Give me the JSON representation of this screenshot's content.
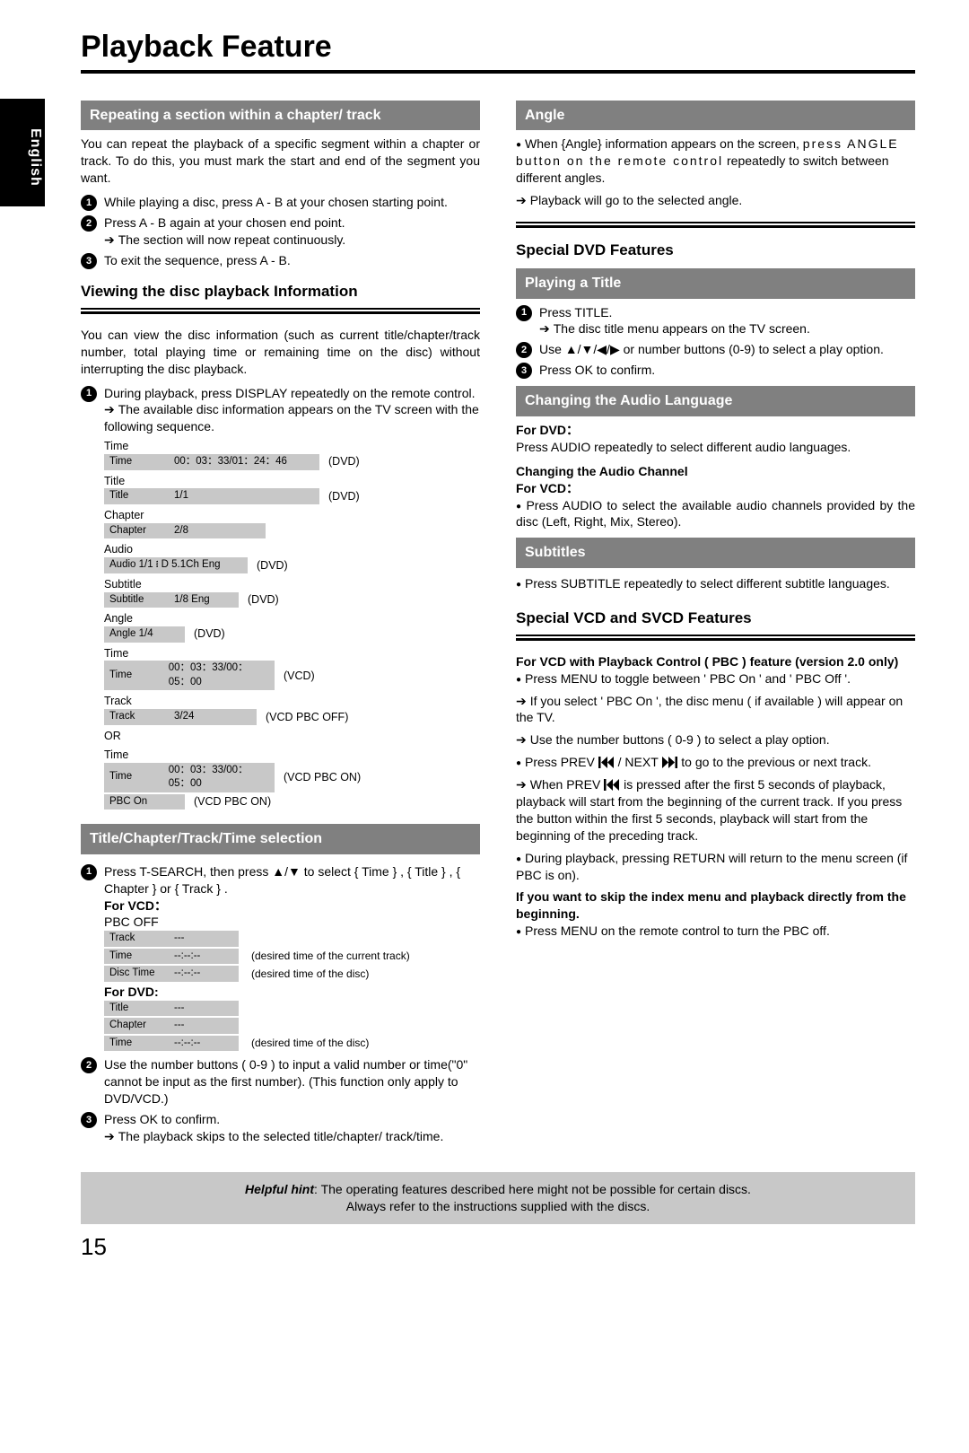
{
  "page": {
    "title": "Playback Feature",
    "language_tab": "English",
    "number": "15"
  },
  "colors": {
    "bar_bg": "#808080",
    "bar_fg": "#ffffff",
    "grey_box": "#c8c8c8",
    "rule": "#000000"
  },
  "left": {
    "repeat": {
      "title": "Repeating a section within a chapter/ track",
      "intro": "You can repeat the playback of a specific segment within a chapter or track. To do this, you must mark the start and end of the segment you want.",
      "steps": [
        "While playing a disc, press A - B at your chosen starting point.",
        "Press A - B again at your chosen end point.",
        "To exit the sequence, press A - B."
      ],
      "step2_arrow": "The section will now repeat continuously."
    },
    "view_info": {
      "title": "Viewing the disc playback Information",
      "intro": "You can view the disc information (such as current title/chapter/track number, total playing time or remaining time on the disc) without interrupting the disc playback.",
      "step1": "During playback, press DISPLAY repeatedly on the remote control.",
      "arrow": "The available disc information appears on the TV screen with the following sequence.",
      "rows": [
        {
          "label": "Time",
          "box_label": "Time",
          "box_value": "00：03：33/01：24：46",
          "suffix": "(DVD)",
          "w": "w-time"
        },
        {
          "label": "Title",
          "box_label": "Title",
          "box_value": "1/1",
          "suffix": "(DVD)",
          "w": "w-title"
        },
        {
          "label": "Chapter",
          "box_label": "Chapter",
          "box_value": "2/8",
          "suffix": "",
          "w": "w-chap"
        },
        {
          "label": "Audio",
          "box_label": "Audio 1/1 ᎒ D  5.1Ch  Eng",
          "box_value": "",
          "suffix": "(DVD)",
          "w": "w-audio",
          "wide": true
        },
        {
          "label": "Subtitle",
          "box_label": "Subtitle",
          "box_value": "1/8     Eng",
          "suffix": "(DVD)",
          "w": "w-sub"
        },
        {
          "label": "Angle",
          "box_label": "Angle 1/4",
          "box_value": "",
          "suffix": "(DVD)",
          "w": "w-angle",
          "wide": true
        },
        {
          "label": "Time",
          "box_label": "Time",
          "box_value": "00：03：33/00：05：00",
          "suffix": "(VCD)",
          "w": "w-vtime"
        },
        {
          "label": "Track",
          "box_label": "Track",
          "box_value": "3/24",
          "suffix": "(VCD   PBC OFF)",
          "w": "w-track"
        },
        {
          "label": "OR",
          "plain": true
        },
        {
          "label": "Time",
          "box_label": "Time",
          "box_value": "00：03：33/00：05：00",
          "suffix": "(VCD   PBC ON)",
          "w": "w-vtime"
        },
        {
          "label": "",
          "box_label": "PBC On",
          "box_value": "",
          "suffix": "(VCD   PBC ON)",
          "w": "w-pbc",
          "wide": true
        }
      ]
    },
    "selection": {
      "title": "Title/Chapter/Track/Time selection",
      "step1_a": "Press T-SEARCH, then press ",
      "step1_b": " to select { Time } , { Title } , { Chapter } or { Track } .",
      "for_vcd": "For VCD：",
      "pbc_off": "PBC OFF",
      "vcd_rows": [
        {
          "box_label": "Track",
          "box_value": "---",
          "note": ""
        },
        {
          "box_label": "Time",
          "box_value": "--:--:--",
          "note": "(desired time of the current track)"
        },
        {
          "box_label": "Disc Time",
          "box_value": "--:--:--",
          "note": "(desired time of the disc)"
        }
      ],
      "for_dvd": "For DVD:",
      "dvd_rows": [
        {
          "box_label": "Title",
          "box_value": "---",
          "note": ""
        },
        {
          "box_label": "Chapter",
          "box_value": "---",
          "note": ""
        },
        {
          "box_label": "Time",
          "box_value": "--:--:--",
          "note": "(desired time of the disc)"
        }
      ],
      "step2": "Use the number buttons ( 0-9 ) to input a valid number or time(\"0\" cannot be input as the first number). (This function only apply to DVD/VCD.)",
      "step3": "Press OK to confirm.",
      "arrow": "The playback skips to the selected title/chapter/ track/time."
    }
  },
  "right": {
    "angle": {
      "title": "Angle",
      "bullet1_a": "When {Angle} information appears on the screen, ",
      "bullet1_b": "press ANGLE button on the remote control",
      "bullet1_c": " repeatedly to switch between different angles.",
      "arrow": "Playback will go to the selected angle."
    },
    "special_dvd": "Special DVD Features",
    "playing_title": {
      "title": "Playing a Title",
      "step1": "Press TITLE.",
      "arrow1": "The disc title menu appears on the TV screen.",
      "step2_a": "Use ",
      "step2_b": " or number buttons (0-9) to select a play option.",
      "step3": "Press OK to confirm."
    },
    "audio_lang": {
      "title": "Changing the Audio Language",
      "for_dvd": "For DVD：",
      "dvd_text": "Press AUDIO repeatedly to select different audio languages.",
      "chan_head": "Changing the Audio Channel",
      "for_vcd": "For VCD：",
      "vcd_bullet": "Press AUDIO to select the available audio channels provided by the disc (Left, Right, Mix, Stereo)."
    },
    "subtitles": {
      "title": "Subtitles",
      "bullet": "Press SUBTITLE repeatedly to select different subtitle languages."
    },
    "special_vcd": {
      "title": "Special VCD and SVCD Features",
      "sub": "For VCD with Playback Control ( PBC ) feature (version 2.0 only)",
      "b1": "Press MENU to toggle between ' PBC On ' and ' PBC Off '.",
      "a1": "If you select ' PBC On ', the disc menu ( if available ) will appear on the TV.",
      "a2": "Use the number buttons ( 0-9 ) to select a play option.",
      "b2_a": "Press PREV ",
      "b2_b": " / NEXT ",
      "b2_c": " to go to the previous or next track.",
      "a3_a": "When PREV ",
      "a3_b": " is pressed after the first 5 seconds of playback, playback will start from the beginning of the current track. If you press the button within the first 5 seconds, playback will start from the beginning of the preceding track.",
      "b3": "During playback, pressing RETURN will return to the menu screen (if PBC is on).",
      "skip_head": "If you want to skip the index menu and playback directly from the beginning.",
      "b4": "Press MENU on the remote control to turn the PBC off."
    }
  },
  "hint": {
    "label": "Helpful hint",
    "line1": "The operating features described here might not be possible for certain discs.",
    "line2": "Always refer to the instructions  supplied with the discs."
  },
  "icons": {
    "updown": "▲/▼",
    "nav4": "▲/▼/◀/▶"
  }
}
